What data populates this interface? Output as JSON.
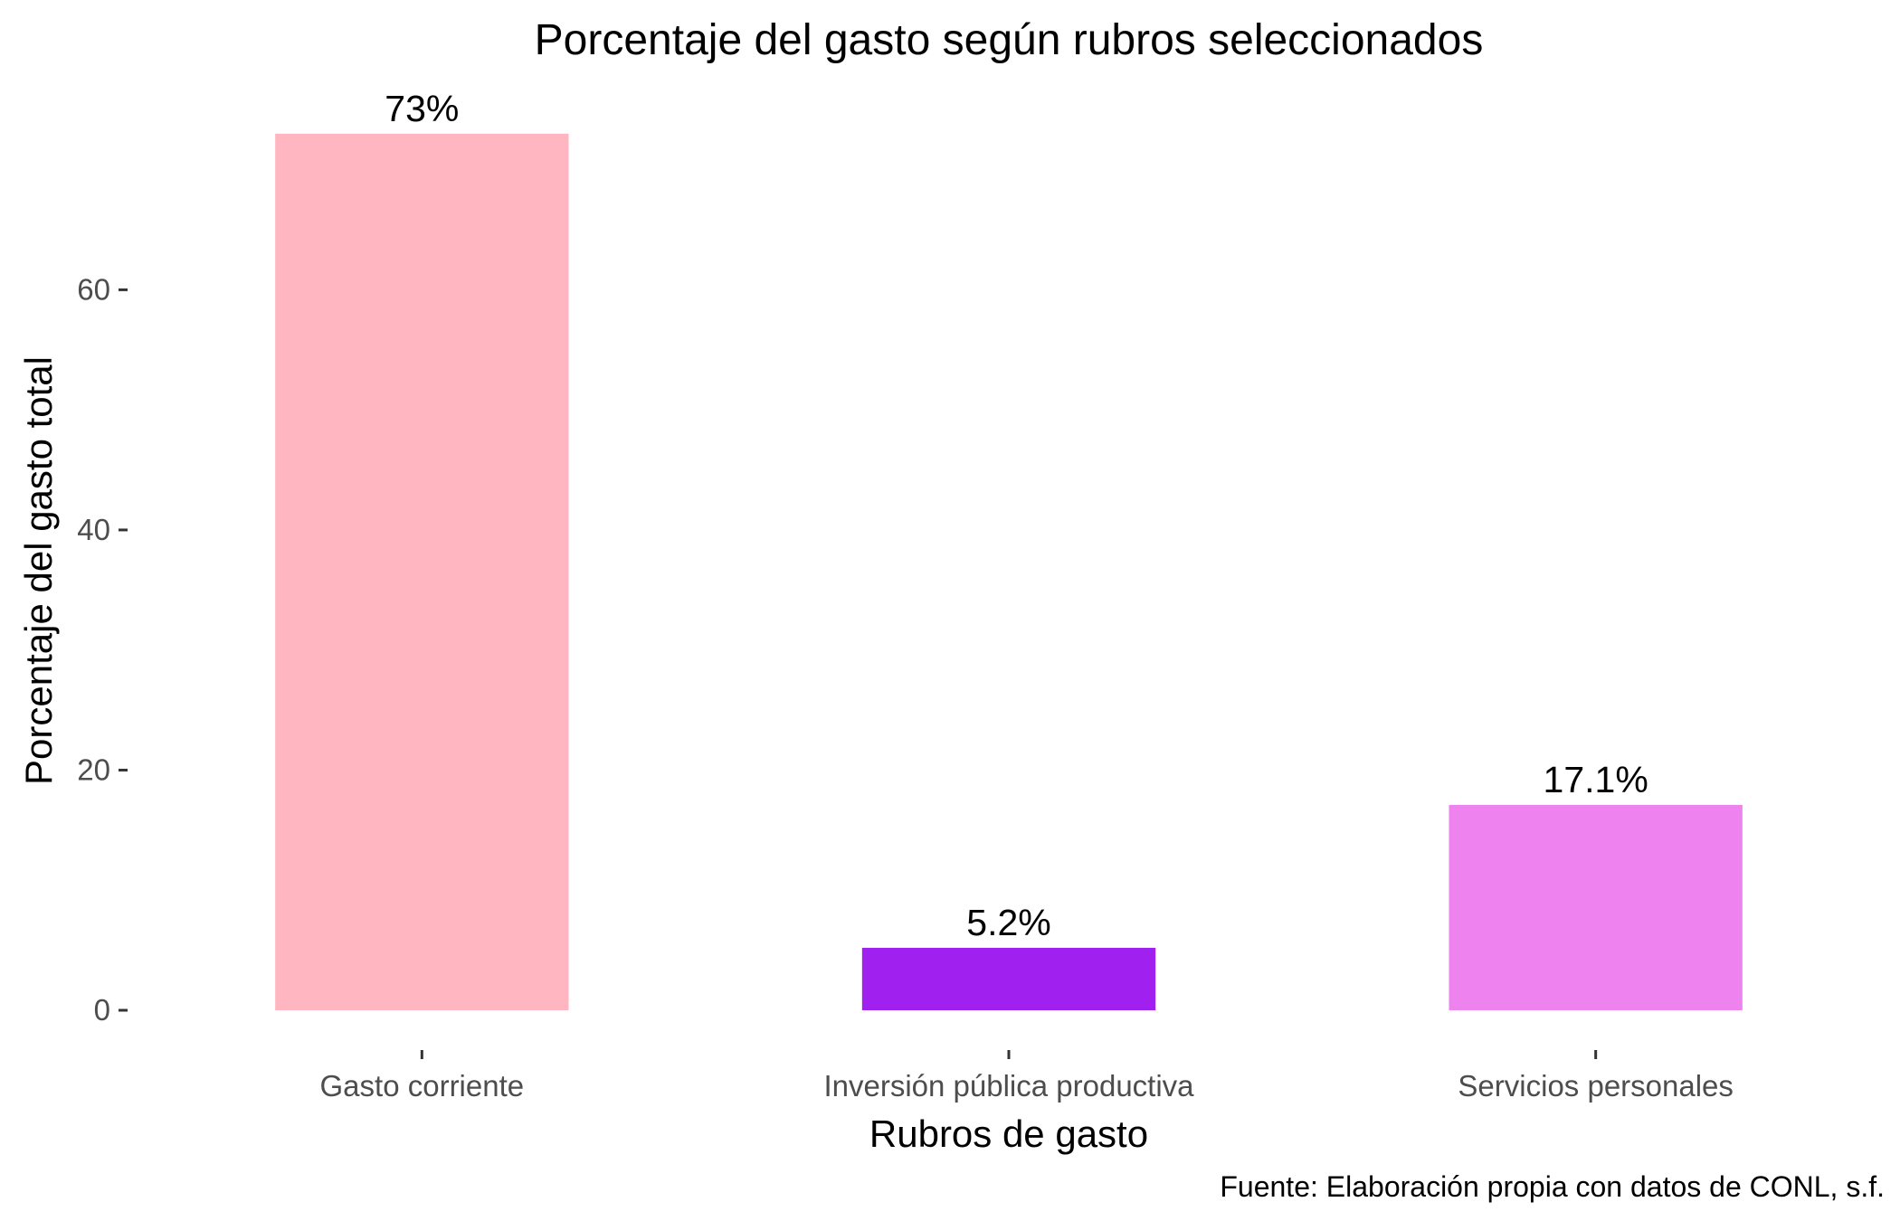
{
  "chart_data": {
    "type": "bar",
    "title": "Porcentaje del gasto según rubros seleccionados",
    "xlabel": "Rubros de gasto",
    "ylabel": "Porcentaje del gasto total",
    "caption": "Fuente: Elaboración propia con datos de CONL, s.f.",
    "categories": [
      "Gasto corriente",
      "Inversión pública productiva",
      "Servicios personales"
    ],
    "values": [
      73,
      5.2,
      17.1
    ],
    "data_labels": [
      "73%",
      "5.2%",
      "17.1%"
    ],
    "colors": [
      "#FFB6C1",
      "#A020F0",
      "#EE82EE"
    ],
    "yticks": [
      0,
      20,
      40,
      60
    ],
    "ylim": [
      0,
      76.6
    ],
    "grid": false,
    "legend": "none"
  }
}
